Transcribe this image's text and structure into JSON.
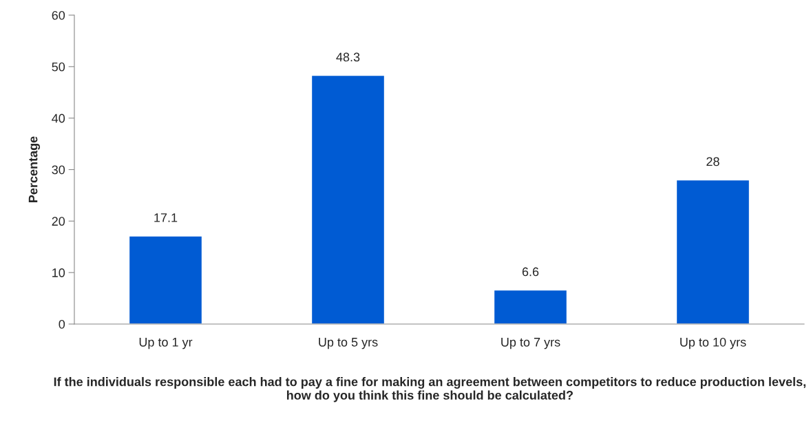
{
  "chart_data": {
    "type": "bar",
    "xlabel": "If the individuals responsible each had to pay a fine for making an agreement between competitors to reduce production levels, how do you think this fine should be calculated?",
    "ylabel": "Percentage",
    "categories": [
      "Up to 1 yr",
      "Up to 5 yrs",
      "Up to 7 yrs",
      "Up to 10 yrs"
    ],
    "values": [
      17.1,
      48.3,
      6.6,
      28
    ],
    "color": "#005bd3",
    "ylim": [
      0,
      60
    ],
    "yticks": [
      0,
      10,
      20,
      30,
      40,
      50,
      60
    ],
    "data_labels": true,
    "grid": false,
    "legend": false
  }
}
